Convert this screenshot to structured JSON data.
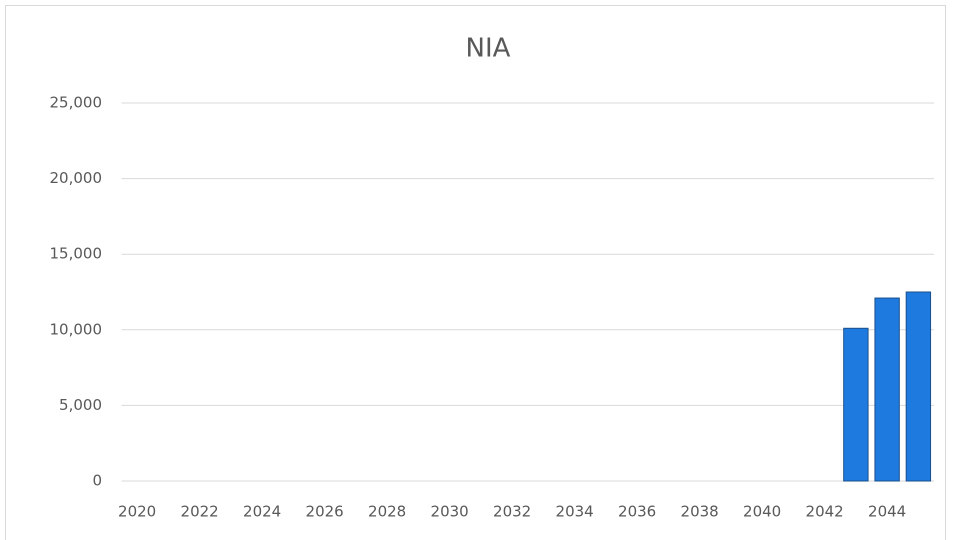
{
  "chart_data": {
    "type": "bar",
    "title": "NIA",
    "categories": [
      "2020",
      null,
      "2022",
      null,
      "2024",
      null,
      "2026",
      null,
      "2028",
      null,
      "2030",
      null,
      "2032",
      null,
      "2034",
      null,
      "2036",
      null,
      "2038",
      null,
      "2040",
      null,
      "2042",
      null,
      "2044",
      null
    ],
    "values": [
      null,
      null,
      null,
      null,
      null,
      null,
      null,
      null,
      null,
      null,
      null,
      null,
      null,
      null,
      null,
      null,
      null,
      null,
      null,
      null,
      null,
      null,
      null,
      10100,
      12100,
      12500
    ],
    "color": "#1f7ae0",
    "ylim": [
      0,
      25000
    ],
    "yticks": [
      0,
      {
        "value": 5000,
        "label": "5,000"
      },
      {
        "value": 10000,
        "label": "10,000"
      },
      {
        "value": 15000,
        "label": "15,000"
      },
      {
        "value": 20000,
        "label": "20,000"
      },
      {
        "value": 25000,
        "label": "25,000"
      }
    ],
    "grid": true
  }
}
